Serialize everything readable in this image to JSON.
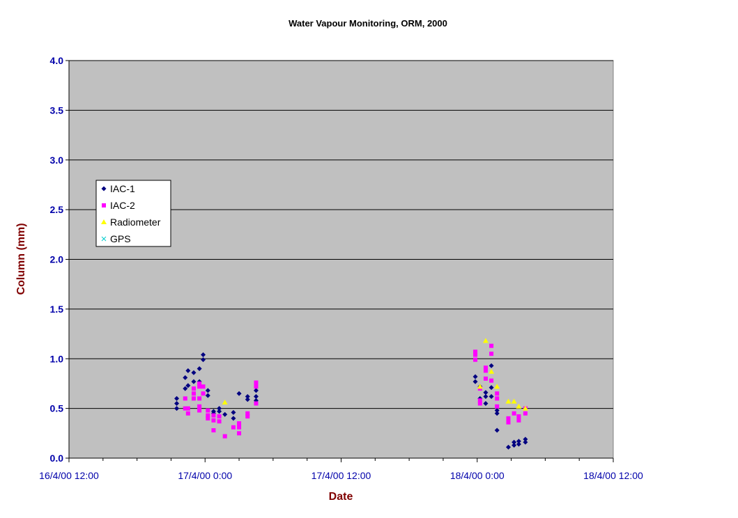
{
  "chart_data": {
    "type": "scatter",
    "title": "Water Vapour Monitoring, ORM, 2000",
    "xlabel": "Date",
    "ylabel": "Column (mm)",
    "x_unit": "date/time",
    "xlim": [
      "2000-04-16T12:00",
      "2000-04-18T12:00"
    ],
    "ylim": [
      0,
      4.0
    ],
    "x_ticks": [
      "16/4/00 12:00",
      "17/4/00 0:00",
      "17/4/00 12:00",
      "18/4/00 0:00",
      "18/4/00 12:00"
    ],
    "y_ticks": [
      "0.0",
      "0.5",
      "1.0",
      "1.5",
      "2.0",
      "2.5",
      "3.0",
      "3.5",
      "4.0"
    ],
    "grid": "horizontal",
    "legend_position": "left",
    "plot_background": "#c0c0c0",
    "series": [
      {
        "name": "IAC-1",
        "marker": "diamond",
        "color": "#000080",
        "points": [
          [
            "2000-04-16T21:30",
            0.6
          ],
          [
            "2000-04-16T21:30",
            0.55
          ],
          [
            "2000-04-16T21:30",
            0.5
          ],
          [
            "2000-04-16T22:15",
            0.7
          ],
          [
            "2000-04-16T22:15",
            0.81
          ],
          [
            "2000-04-16T22:30",
            0.73
          ],
          [
            "2000-04-16T22:30",
            0.88
          ],
          [
            "2000-04-16T23:00",
            0.77
          ],
          [
            "2000-04-16T23:00",
            0.86
          ],
          [
            "2000-04-16T23:30",
            0.9
          ],
          [
            "2000-04-16T23:30",
            0.77
          ],
          [
            "2000-04-16T23:50",
            1.04
          ],
          [
            "2000-04-16T23:50",
            0.99
          ],
          [
            "2000-04-17T00:15",
            0.68
          ],
          [
            "2000-04-17T00:15",
            0.63
          ],
          [
            "2000-04-17T00:45",
            0.47
          ],
          [
            "2000-04-17T00:45",
            0.45
          ],
          [
            "2000-04-17T01:15",
            0.5
          ],
          [
            "2000-04-17T01:15",
            0.47
          ],
          [
            "2000-04-17T01:45",
            0.44
          ],
          [
            "2000-04-17T02:30",
            0.46
          ],
          [
            "2000-04-17T02:30",
            0.4
          ],
          [
            "2000-04-17T03:00",
            0.65
          ],
          [
            "2000-04-17T03:45",
            0.62
          ],
          [
            "2000-04-17T03:45",
            0.59
          ],
          [
            "2000-04-17T04:30",
            0.68
          ],
          [
            "2000-04-17T04:30",
            0.62
          ],
          [
            "2000-04-17T04:30",
            0.58
          ],
          [
            "2000-04-17T23:50",
            0.82
          ],
          [
            "2000-04-17T23:50",
            0.77
          ],
          [
            "2000-04-18T00:15",
            0.72
          ],
          [
            "2000-04-18T00:15",
            0.6
          ],
          [
            "2000-04-18T00:45",
            0.66
          ],
          [
            "2000-04-18T00:45",
            0.62
          ],
          [
            "2000-04-18T00:45",
            0.55
          ],
          [
            "2000-04-18T01:15",
            0.93
          ],
          [
            "2000-04-18T01:15",
            0.71
          ],
          [
            "2000-04-18T01:15",
            0.62
          ],
          [
            "2000-04-18T01:45",
            0.48
          ],
          [
            "2000-04-18T01:45",
            0.45
          ],
          [
            "2000-04-18T01:45",
            0.28
          ],
          [
            "2000-04-18T02:45",
            0.11
          ],
          [
            "2000-04-18T03:15",
            0.16
          ],
          [
            "2000-04-18T03:15",
            0.13
          ],
          [
            "2000-04-18T03:40",
            0.17
          ],
          [
            "2000-04-18T03:40",
            0.14
          ],
          [
            "2000-04-18T04:15",
            0.19
          ],
          [
            "2000-04-18T04:15",
            0.16
          ]
        ]
      },
      {
        "name": "IAC-2",
        "marker": "square",
        "color": "#ff00ff",
        "points": [
          [
            "2000-04-16T22:15",
            0.6
          ],
          [
            "2000-04-16T22:15",
            0.5
          ],
          [
            "2000-04-16T22:30",
            0.5
          ],
          [
            "2000-04-16T22:30",
            0.45
          ],
          [
            "2000-04-16T23:00",
            0.7
          ],
          [
            "2000-04-16T23:00",
            0.65
          ],
          [
            "2000-04-16T23:00",
            0.6
          ],
          [
            "2000-04-16T23:30",
            0.75
          ],
          [
            "2000-04-16T23:30",
            0.72
          ],
          [
            "2000-04-16T23:30",
            0.6
          ],
          [
            "2000-04-16T23:30",
            0.52
          ],
          [
            "2000-04-16T23:30",
            0.48
          ],
          [
            "2000-04-16T23:50",
            0.72
          ],
          [
            "2000-04-16T23:50",
            0.65
          ],
          [
            "2000-04-17T00:15",
            0.48
          ],
          [
            "2000-04-17T00:15",
            0.43
          ],
          [
            "2000-04-17T00:15",
            0.4
          ],
          [
            "2000-04-17T00:45",
            0.43
          ],
          [
            "2000-04-17T00:45",
            0.38
          ],
          [
            "2000-04-17T00:45",
            0.28
          ],
          [
            "2000-04-17T01:15",
            0.42
          ],
          [
            "2000-04-17T01:15",
            0.37
          ],
          [
            "2000-04-17T01:45",
            0.22
          ],
          [
            "2000-04-17T02:30",
            0.31
          ],
          [
            "2000-04-17T03:00",
            0.35
          ],
          [
            "2000-04-17T03:00",
            0.31
          ],
          [
            "2000-04-17T03:00",
            0.25
          ],
          [
            "2000-04-17T03:45",
            0.45
          ],
          [
            "2000-04-17T03:45",
            0.42
          ],
          [
            "2000-04-17T04:30",
            0.76
          ],
          [
            "2000-04-17T04:30",
            0.72
          ],
          [
            "2000-04-17T04:30",
            0.55
          ],
          [
            "2000-04-17T23:50",
            1.07
          ],
          [
            "2000-04-17T23:50",
            1.04
          ],
          [
            "2000-04-17T23:50",
            0.99
          ],
          [
            "2000-04-18T00:15",
            0.7
          ],
          [
            "2000-04-18T00:15",
            0.58
          ],
          [
            "2000-04-18T00:15",
            0.55
          ],
          [
            "2000-04-18T00:45",
            0.91
          ],
          [
            "2000-04-18T00:45",
            0.88
          ],
          [
            "2000-04-18T00:45",
            0.8
          ],
          [
            "2000-04-18T01:15",
            1.13
          ],
          [
            "2000-04-18T01:15",
            1.05
          ],
          [
            "2000-04-18T01:15",
            0.78
          ],
          [
            "2000-04-18T01:45",
            0.65
          ],
          [
            "2000-04-18T01:45",
            0.6
          ],
          [
            "2000-04-18T01:45",
            0.52
          ],
          [
            "2000-04-18T02:45",
            0.4
          ],
          [
            "2000-04-18T02:45",
            0.36
          ],
          [
            "2000-04-18T03:15",
            0.45
          ],
          [
            "2000-04-18T03:40",
            0.42
          ],
          [
            "2000-04-18T03:40",
            0.38
          ],
          [
            "2000-04-18T04:15",
            0.5
          ],
          [
            "2000-04-18T04:15",
            0.45
          ]
        ]
      },
      {
        "name": "Radiometer",
        "marker": "triangle",
        "color": "#ffff00",
        "points": [
          [
            "2000-04-17T01:45",
            0.56
          ],
          [
            "2000-04-18T00:15",
            0.72
          ],
          [
            "2000-04-18T00:45",
            1.18
          ],
          [
            "2000-04-18T01:15",
            0.87
          ],
          [
            "2000-04-18T01:45",
            0.72
          ],
          [
            "2000-04-18T02:45",
            0.57
          ],
          [
            "2000-04-18T03:15",
            0.57
          ],
          [
            "2000-04-18T03:40",
            0.52
          ],
          [
            "2000-04-18T04:15",
            0.5
          ]
        ]
      },
      {
        "name": "GPS",
        "marker": "x",
        "color": "#00cccc",
        "points": []
      }
    ]
  }
}
